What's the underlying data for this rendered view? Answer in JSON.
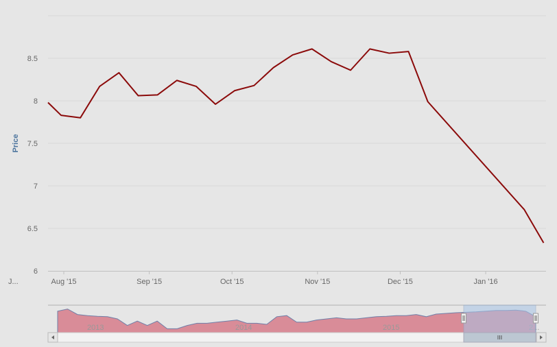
{
  "chart_data": {
    "type": "line",
    "title": "",
    "xlabel": "",
    "ylabel": "Price",
    "ylim": [
      6,
      9
    ],
    "y_ticks": [
      "6",
      "6.5",
      "7",
      "7.5",
      "8",
      "8.5"
    ],
    "x_ticks": [
      {
        "label": "Aug '15",
        "date": "2015-08-01"
      },
      {
        "label": "Sep '15",
        "date": "2015-09-01"
      },
      {
        "label": "Oct '15",
        "date": "2015-10-01"
      },
      {
        "label": "Nov '15",
        "date": "2015-11-01"
      },
      {
        "label": "Dec '15",
        "date": "2015-12-01"
      },
      {
        "label": "Jan '16",
        "date": "2016-01-01"
      }
    ],
    "x_overflow_label": "J...",
    "grid": true,
    "series": [
      {
        "name": "Price",
        "color": "#8b0a0a",
        "x": [
          "2015-07-26",
          "2015-07-31",
          "2015-08-07",
          "2015-08-14",
          "2015-08-21",
          "2015-08-28",
          "2015-09-04",
          "2015-09-11",
          "2015-09-18",
          "2015-09-25",
          "2015-10-02",
          "2015-10-09",
          "2015-10-16",
          "2015-10-23",
          "2015-10-30",
          "2015-11-06",
          "2015-11-13",
          "2015-11-20",
          "2015-11-27",
          "2015-12-04",
          "2015-12-11",
          "2016-01-15",
          "2016-01-22"
        ],
        "values": [
          7.98,
          7.83,
          7.8,
          8.17,
          8.33,
          8.06,
          8.07,
          8.24,
          8.17,
          7.96,
          8.12,
          8.18,
          8.39,
          8.54,
          8.61,
          8.46,
          8.36,
          8.61,
          8.56,
          8.58,
          7.99,
          6.72,
          6.33
        ]
      }
    ],
    "navigator": {
      "year_labels": [
        "2013",
        "2014",
        "2015",
        "2..."
      ],
      "values": [
        0.85,
        0.95,
        0.7,
        0.65,
        0.62,
        0.6,
        0.5,
        0.2,
        0.4,
        0.2,
        0.4,
        0.05,
        0.05,
        0.2,
        0.3,
        0.3,
        0.35,
        0.4,
        0.45,
        0.3,
        0.3,
        0.25,
        0.6,
        0.65,
        0.35,
        0.35,
        0.45,
        0.5,
        0.55,
        0.5,
        0.5,
        0.55,
        0.6,
        0.62,
        0.65,
        0.65,
        0.7,
        0.6,
        0.72,
        0.75,
        0.78,
        0.8,
        0.82,
        0.85,
        0.88,
        0.88,
        0.9,
        0.85,
        0.6
      ],
      "selected_range": [
        "2015-07-26",
        "2016-01-22"
      ],
      "fill_color": "#d98c98",
      "selection_color": "#a8c4e6"
    }
  }
}
